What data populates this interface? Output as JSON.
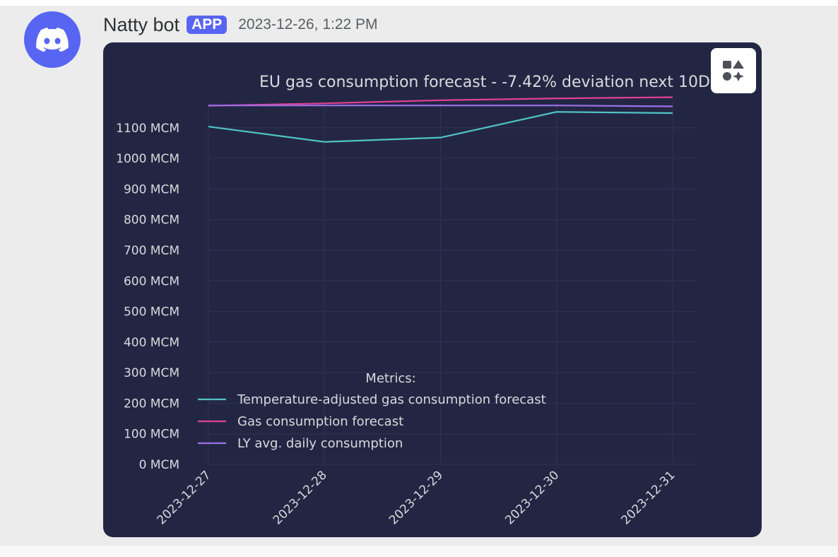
{
  "message": {
    "author": "Natty bot",
    "badge": "APP",
    "timestamp": "2023-12-26, 1:22 PM"
  },
  "colors": {
    "discord_blurple": "#5865f2",
    "chart_bg": "#232643",
    "grid": "#2f3453",
    "text": "#d9d9dd"
  },
  "icons": {
    "avatar": "discord-logo-icon",
    "apps_button": "app-launcher-icon"
  },
  "chart_data": {
    "type": "line",
    "title": "EU gas consumption forecast - -7.42% deviation next 10D",
    "x": [
      "2023-12-27",
      "2023-12-28",
      "2023-12-29",
      "2023-12-30",
      "2023-12-31"
    ],
    "yticks": [
      0,
      100,
      200,
      300,
      400,
      500,
      600,
      700,
      800,
      900,
      1000,
      1100
    ],
    "ytick_labels": [
      "0 MCM",
      "100 MCM",
      "200 MCM",
      "300 MCM",
      "400 MCM",
      "500 MCM",
      "600 MCM",
      "700 MCM",
      "800 MCM",
      "900 MCM",
      "1000 MCM",
      "1100 MCM"
    ],
    "ylim": [
      0,
      1185
    ],
    "grid": true,
    "legend_title": "Metrics:",
    "legend_position": "lower-left",
    "series": [
      {
        "name": "Temperature-adjusted gas consumption forecast",
        "color": "#4fc3c3",
        "values": [
          1104,
          1054,
          1068,
          1152,
          1148
        ]
      },
      {
        "name": "Gas consumption forecast",
        "color": "#e0428f",
        "values": [
          1172,
          1180,
          1190,
          1196,
          1200
        ]
      },
      {
        "name": "LY avg. daily consumption",
        "color": "#9b6fe8",
        "values": [
          1173,
          1173,
          1173,
          1173,
          1170
        ]
      }
    ]
  }
}
